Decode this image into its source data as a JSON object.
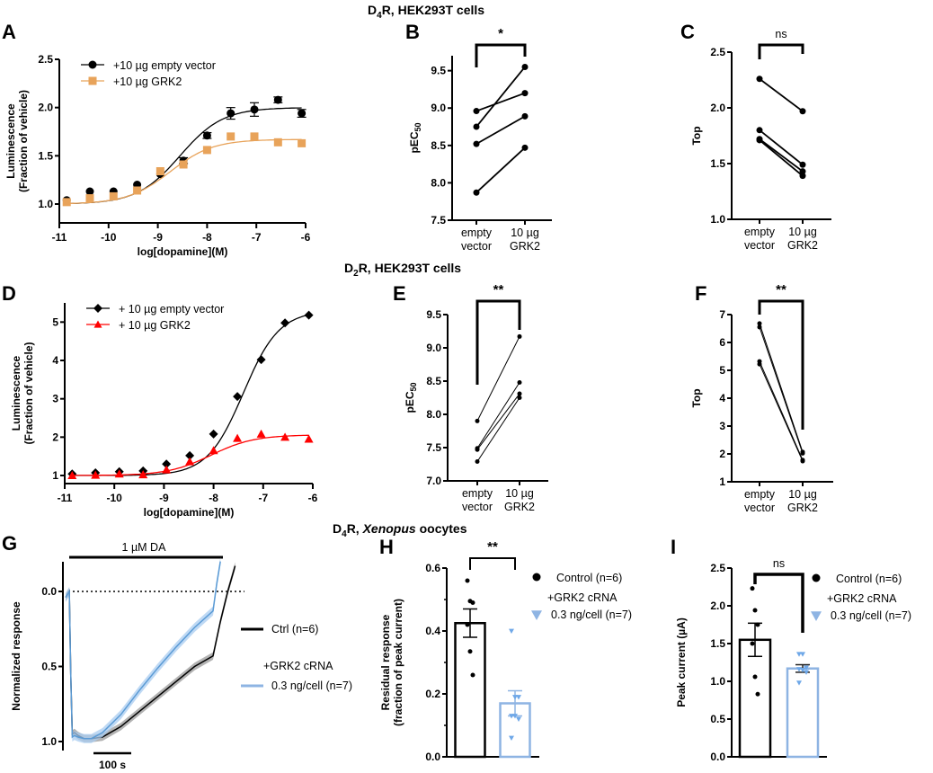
{
  "section_titles": [
    {
      "prefix": "D",
      "sub": "4",
      "suffix": "R, HEK293T cells"
    },
    {
      "prefix": "D",
      "sub": "2",
      "suffix": "R, HEK293T cells"
    },
    {
      "prefix": "D",
      "sub": "4",
      "suffix": "R, ",
      "italic": "Xenopus",
      "after": " oocytes"
    }
  ],
  "chart_data": [
    {
      "panel": "A",
      "type": "line",
      "xlabel": "log[dopamine](M)",
      "ylabel": [
        "Luminescence",
        "(Fraction of vehicle)"
      ],
      "xlim": [
        -11,
        -6
      ],
      "ylim": [
        0.8,
        2.5
      ],
      "xticks": [
        "-11",
        "-10",
        "-9",
        "-8",
        "-7",
        "-6"
      ],
      "xtick_values": [
        -11,
        -10,
        -9,
        -8,
        -7,
        -6
      ],
      "yticks": [
        "1.0",
        "1.5",
        "2.0",
        "2.5"
      ],
      "ytick_values": [
        1.0,
        1.5,
        2.0,
        2.5
      ],
      "legend": "top-left",
      "series": [
        {
          "name": "+10 µg empty vector",
          "color": "#000000",
          "marker": "circle",
          "x": [
            -10.85,
            -10.38,
            -9.9,
            -9.42,
            -8.95,
            -8.48,
            -8.0,
            -7.52,
            -7.04,
            -6.56,
            -6.08
          ],
          "y": [
            1.04,
            1.13,
            1.13,
            1.2,
            1.31,
            1.45,
            1.71,
            1.94,
            1.98,
            2.08,
            1.94
          ],
          "err": [
            0,
            0,
            0,
            0,
            0,
            0.03,
            0.03,
            0.06,
            0.07,
            0.03,
            0.04
          ],
          "fit": {
            "bottom": 1.0,
            "top": 2.0,
            "logEC50": -8.55,
            "hill": 1.0
          }
        },
        {
          "name": "+10 µg GRK2",
          "color": "#E8A35A",
          "marker": "square",
          "x": [
            -10.85,
            -10.38,
            -9.9,
            -9.42,
            -8.95,
            -8.48,
            -8.0,
            -7.52,
            -7.04,
            -6.56,
            -6.08
          ],
          "y": [
            1.02,
            1.06,
            1.08,
            1.14,
            1.34,
            1.41,
            1.56,
            1.7,
            1.7,
            1.64,
            1.63
          ],
          "err": [
            0,
            0,
            0,
            0,
            0,
            0,
            0,
            0,
            0,
            0,
            0
          ],
          "fit": {
            "bottom": 1.0,
            "top": 1.67,
            "logEC50": -8.75,
            "hill": 1.0
          }
        }
      ]
    },
    {
      "panel": "B",
      "type": "line",
      "ylabel": "pEC50",
      "ylim": [
        7.5,
        9.7
      ],
      "yticks": [
        "7.5",
        "8.0",
        "8.5",
        "9.0",
        "9.5"
      ],
      "ytick_values": [
        7.5,
        8.0,
        8.5,
        9.0,
        9.5
      ],
      "categories": [
        [
          "empty",
          "vector"
        ],
        [
          "10 µg",
          "GRK2"
        ]
      ],
      "significance": "*",
      "pairs": [
        [
          8.96,
          9.2
        ],
        [
          8.75,
          9.55
        ],
        [
          8.52,
          8.89
        ],
        [
          7.87,
          8.47
        ]
      ]
    },
    {
      "panel": "C",
      "type": "line",
      "ylabel": "Top",
      "ylim": [
        1.0,
        2.5
      ],
      "yticks": [
        "1.0",
        "1.5",
        "2.0",
        "2.5"
      ],
      "ytick_values": [
        1.0,
        1.5,
        2.0,
        2.5
      ],
      "categories": [
        [
          "empty",
          "vector"
        ],
        [
          "10 µg",
          "GRK2"
        ]
      ],
      "significance": "ns",
      "pairs": [
        [
          2.26,
          1.97
        ],
        [
          1.8,
          1.49
        ],
        [
          1.72,
          1.43
        ],
        [
          1.71,
          1.39
        ]
      ]
    },
    {
      "panel": "D",
      "type": "line",
      "xlabel": "log[dopamine](M)",
      "ylabel": [
        "Luminescence",
        "(Fraction of vehicle)"
      ],
      "xlim": [
        -11,
        -6
      ],
      "ylim": [
        0.8,
        5.5
      ],
      "xticks": [
        "-11",
        "-10",
        "-9",
        "-8",
        "-7",
        "-6"
      ],
      "xtick_values": [
        -11,
        -10,
        -9,
        -8,
        -7,
        -6
      ],
      "yticks": [
        "1",
        "2",
        "3",
        "4",
        "5"
      ],
      "ytick_values": [
        1,
        2,
        3,
        4,
        5
      ],
      "legend": "top-left",
      "series": [
        {
          "name": "+ 10 µg empty vector",
          "color": "#000000",
          "marker": "diamond",
          "x": [
            -10.85,
            -10.38,
            -9.9,
            -9.42,
            -8.95,
            -8.48,
            -8.0,
            -7.52,
            -7.04,
            -6.56,
            -6.08
          ],
          "y": [
            1.04,
            1.07,
            1.1,
            1.12,
            1.3,
            1.52,
            2.08,
            3.06,
            4.02,
            4.98,
            5.18
          ],
          "fit": {
            "bottom": 1.0,
            "top": 5.3,
            "logEC50": -7.4,
            "hill": 1.2
          }
        },
        {
          "name": "+ 10 µg GRK2",
          "color": "#FF0000",
          "marker": "triangle",
          "x": [
            -10.85,
            -10.38,
            -9.9,
            -9.42,
            -8.95,
            -8.48,
            -8.0,
            -7.52,
            -7.04,
            -6.56,
            -6.08
          ],
          "y": [
            1.0,
            1.01,
            1.04,
            1.02,
            1.15,
            1.36,
            1.65,
            1.97,
            2.08,
            2.0,
            1.95
          ],
          "fit": {
            "bottom": 1.0,
            "top": 2.06,
            "logEC50": -8.05,
            "hill": 1.0
          }
        }
      ]
    },
    {
      "panel": "E",
      "type": "line",
      "ylabel": "pEC50",
      "ylim": [
        7.0,
        9.5
      ],
      "yticks": [
        "7.0",
        "7.5",
        "8.0",
        "8.5",
        "9.0",
        "9.5"
      ],
      "ytick_values": [
        7.0,
        7.5,
        8.0,
        8.5,
        9.0,
        9.5
      ],
      "categories": [
        [
          "empty",
          "vector"
        ],
        [
          "10 µg",
          "GRK2"
        ]
      ],
      "significance": "**",
      "pairs": [
        [
          7.9,
          9.17
        ],
        [
          7.49,
          8.48
        ],
        [
          7.47,
          8.31
        ],
        [
          7.29,
          8.25
        ]
      ]
    },
    {
      "panel": "F",
      "type": "line",
      "ylabel": "Top",
      "ylim": [
        1,
        7
      ],
      "yticks": [
        "1",
        "2",
        "3",
        "4",
        "5",
        "6",
        "7"
      ],
      "ytick_values": [
        1,
        2,
        3,
        4,
        5,
        6,
        7
      ],
      "categories": [
        [
          "empty",
          "vector"
        ],
        [
          "10 µg",
          "GRK2"
        ]
      ],
      "significance": "**",
      "pairs": [
        [
          6.68,
          2.07
        ],
        [
          6.55,
          2.02
        ],
        [
          5.32,
          1.78
        ],
        [
          5.22,
          1.74
        ]
      ]
    },
    {
      "panel": "G",
      "type": "line",
      "ylabel": "Normalized response",
      "ylim_inverted": [
        -0.2,
        1.05
      ],
      "yticks": [
        "0.0",
        "0.5",
        "1.0"
      ],
      "ytick_values": [
        0.0,
        0.5,
        1.0
      ],
      "annotation": "1 µM DA",
      "scalebar": "100 s",
      "legend": [
        {
          "name": "Ctrl (n=6)",
          "color": "#000000"
        },
        {
          "name_line1": "+GRK2 cRNA",
          "name_line2": "0.3 ng/cell (n=7)",
          "color": "#8EB4E3"
        }
      ],
      "series": [
        {
          "name": "Ctrl (n=6)",
          "color": "#000000",
          "band": "#999999",
          "t": [
            0,
            10,
            14,
            18,
            24,
            34,
            50,
            70,
            100,
            150,
            200,
            250,
            300,
            350,
            400,
            420,
            440,
            460
          ],
          "y": [
            0.04,
            0.0,
            0.55,
            0.95,
            0.94,
            0.96,
            0.98,
            0.98,
            0.97,
            0.9,
            0.8,
            0.7,
            0.6,
            0.5,
            0.43,
            0.2,
            0.0,
            -0.17
          ],
          "err": 0.025
        },
        {
          "name": "+GRK2 cRNA 0.3 ng/cell (n=7)",
          "color": "#5B9BD5",
          "band": "#A9CCF0",
          "t": [
            0,
            10,
            14,
            18,
            24,
            34,
            50,
            70,
            100,
            150,
            200,
            250,
            300,
            350,
            400,
            410,
            420
          ],
          "y": [
            0.04,
            0.0,
            0.55,
            0.97,
            0.96,
            0.97,
            0.98,
            0.98,
            0.94,
            0.82,
            0.66,
            0.51,
            0.37,
            0.24,
            0.13,
            -0.05,
            -0.2
          ],
          "err": 0.03
        }
      ]
    },
    {
      "panel": "H",
      "type": "bar",
      "ylabel": [
        "Residual response",
        "(fraction of peak current)"
      ],
      "ylim": [
        0,
        0.6
      ],
      "yticks": [
        "0.0",
        "0.2",
        "0.4",
        "0.6"
      ],
      "ytick_values": [
        0.0,
        0.2,
        0.4,
        0.6
      ],
      "significance": "**",
      "legend": [
        {
          "name": "Control (n=6)",
          "marker": "circle",
          "color": "#000000"
        },
        {
          "name_line1": "+GRK2 cRNA",
          "name_line2": " 0.3 ng/cell (n=7)",
          "marker": "triangle-down",
          "color": "#8EB4E3"
        }
      ],
      "bars": [
        {
          "name": "Control",
          "mean": 0.425,
          "sem": 0.045,
          "color": "#000000",
          "points": [
            0.56,
            0.495,
            0.49,
            0.42,
            0.335,
            0.26
          ]
        },
        {
          "name": "+GRK2",
          "mean": 0.17,
          "sem": 0.04,
          "color": "#8EB4E3",
          "points": [
            0.4,
            0.19,
            0.19,
            0.13,
            0.13,
            0.12,
            0.06
          ]
        }
      ]
    },
    {
      "panel": "I",
      "type": "bar",
      "ylabel": "Peak current (µA)",
      "ylim": [
        0,
        2.5
      ],
      "yticks": [
        "0.0",
        "0.5",
        "1.0",
        "1.5",
        "2.0",
        "2.5"
      ],
      "ytick_values": [
        0.0,
        0.5,
        1.0,
        1.5,
        2.0,
        2.5
      ],
      "significance": "ns",
      "legend": [
        {
          "name": "Control (n=6)",
          "marker": "circle",
          "color": "#000000"
        },
        {
          "name_line1": "+GRK2 cRNA",
          "name_line2": " 0.3 ng/cell (n=7)",
          "marker": "triangle-down",
          "color": "#8EB4E3"
        }
      ],
      "bars": [
        {
          "name": "Control",
          "mean": 1.55,
          "sem": 0.22,
          "color": "#000000",
          "points": [
            2.23,
            1.94,
            1.75,
            1.5,
            1.06,
            0.83
          ]
        },
        {
          "name": "+GRK2",
          "mean": 1.17,
          "sem": 0.05,
          "color": "#8EB4E3",
          "points": [
            1.36,
            1.36,
            1.18,
            1.16,
            1.15,
            1.12,
            0.98
          ]
        }
      ]
    }
  ]
}
